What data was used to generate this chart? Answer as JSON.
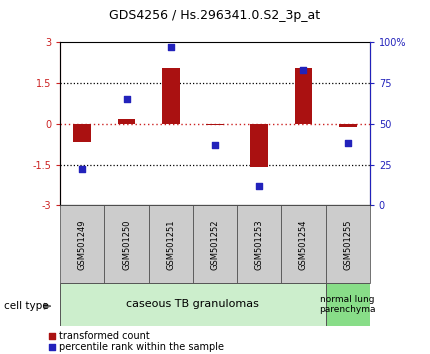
{
  "title": "GDS4256 / Hs.296341.0.S2_3p_at",
  "samples": [
    "GSM501249",
    "GSM501250",
    "GSM501251",
    "GSM501252",
    "GSM501253",
    "GSM501254",
    "GSM501255"
  ],
  "transformed_count": [
    -0.65,
    0.18,
    2.05,
    -0.05,
    -1.6,
    2.05,
    -0.12
  ],
  "percentile_rank": [
    22,
    65,
    97,
    37,
    12,
    83,
    38
  ],
  "ylim_left": [
    -3,
    3
  ],
  "ylim_right": [
    0,
    100
  ],
  "yticks_left": [
    -3,
    -1.5,
    0,
    1.5,
    3
  ],
  "yticks_right": [
    0,
    25,
    50,
    75,
    100
  ],
  "ytick_labels_left": [
    "-3",
    "-1.5",
    "0",
    "1.5",
    "3"
  ],
  "ytick_labels_right": [
    "0",
    "25",
    "50",
    "75",
    "100%"
  ],
  "bar_color": "#aa1111",
  "dot_color": "#2222bb",
  "group1_n": 6,
  "group2_n": 1,
  "group1_label": "caseous TB granulomas",
  "group2_label": "normal lung\nparenchyma",
  "group1_color": "#cceecc",
  "group2_color": "#88dd88",
  "sample_box_color": "#cccccc",
  "cell_type_label": "cell type",
  "legend_bar_label": "transformed count",
  "legend_dot_label": "percentile rank within the sample",
  "left_axis_color": "#cc2222",
  "right_axis_color": "#2222bb",
  "bar_width": 0.4
}
